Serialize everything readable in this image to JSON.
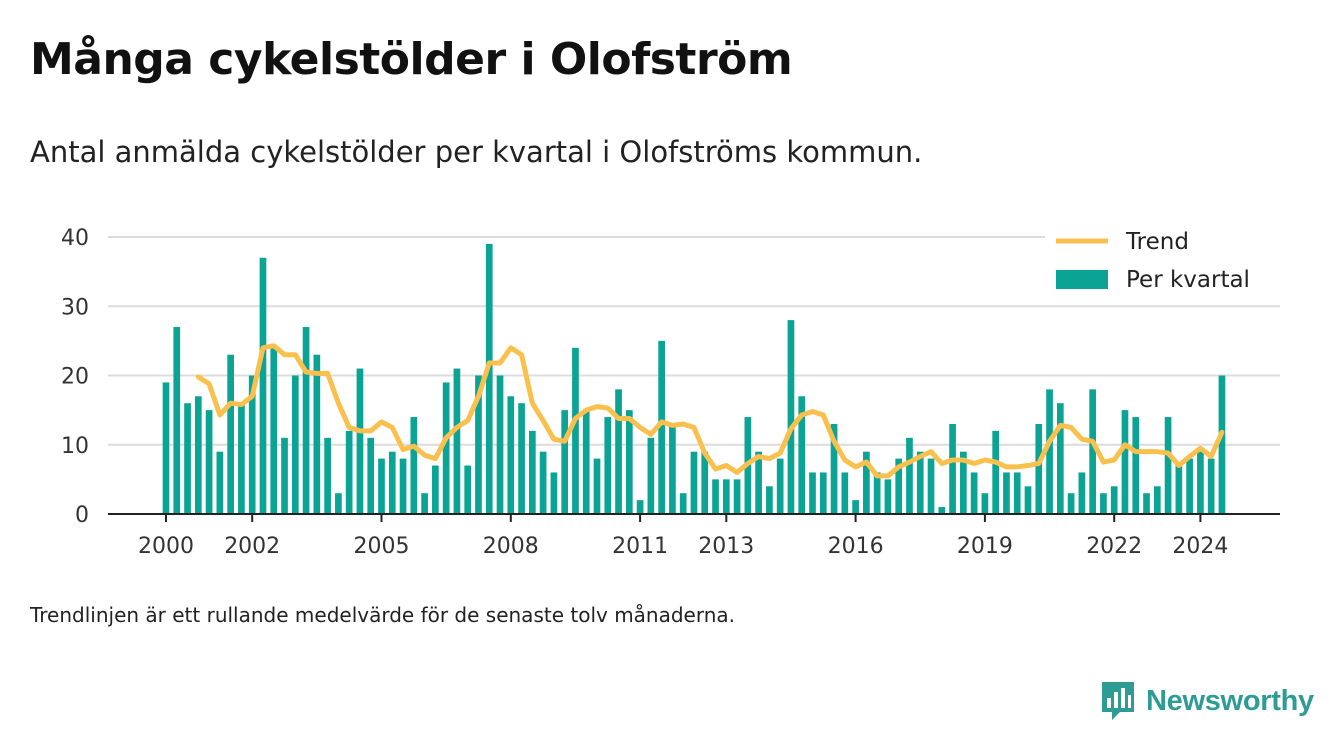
{
  "title": "Många cykelstölder i Olofström",
  "subtitle": "Antal anmälda cykelstölder per kvartal i Olofströms kommun.",
  "note": "Trendlinjen är ett rullande medelvärde för de senaste tolv månaderna.",
  "brand": "Newsworthy",
  "colors": {
    "bars": "#0aa394",
    "trend": "#f9c04d",
    "grid": "#dcdcdc",
    "axis": "#222222",
    "brand": "#2e9c95"
  },
  "chart_data": {
    "type": "bar",
    "title": "Många cykelstölder i Olofström",
    "xlabel": "",
    "ylabel": "",
    "ylim": [
      0,
      40
    ],
    "yticks": [
      0,
      10,
      20,
      30,
      40
    ],
    "xlim": [
      2000,
      2025.4
    ],
    "xticks": [
      2000,
      2002,
      2005,
      2008,
      2011,
      2013,
      2016,
      2019,
      2022,
      2024
    ],
    "grid": true,
    "legend_position": "top-right",
    "series": [
      {
        "name": "Per kvartal",
        "type": "bar",
        "color": "#0aa394",
        "start_year": 2000,
        "values": [
          19,
          27,
          16,
          17,
          15,
          9,
          23,
          16,
          20,
          37,
          24,
          11,
          20,
          27,
          23,
          11,
          3,
          12,
          21,
          11,
          8,
          9,
          8,
          14,
          3,
          7,
          19,
          21,
          7,
          20,
          39,
          20,
          17,
          16,
          12,
          9,
          6,
          15,
          24,
          15,
          8,
          14,
          18,
          15,
          2,
          11,
          25,
          13,
          3,
          9,
          9,
          5,
          5,
          5,
          14,
          9,
          4,
          8,
          28,
          17,
          6,
          6,
          13,
          6,
          2,
          9,
          6,
          5,
          8,
          11,
          9,
          8,
          1,
          13,
          9,
          6,
          3,
          12,
          6,
          6,
          4,
          13,
          18,
          16,
          3,
          6,
          18,
          3,
          4,
          15,
          14,
          3,
          4,
          14,
          7,
          8,
          9,
          8,
          20
        ]
      },
      {
        "name": "Trend",
        "type": "line",
        "color": "#f9c04d",
        "start_year": 2000.75,
        "values": [
          19.8,
          18.8,
          14.3,
          16.0,
          15.8,
          17.0,
          24.0,
          24.3,
          23.0,
          23.0,
          20.5,
          20.3,
          20.3,
          16.0,
          12.5,
          12.0,
          12.0,
          13.3,
          12.5,
          9.3,
          9.8,
          8.5,
          8.0,
          11.0,
          12.5,
          13.5,
          17.0,
          21.8,
          21.8,
          24.0,
          23.0,
          16.0,
          13.5,
          10.8,
          10.5,
          13.8,
          15.0,
          15.5,
          15.3,
          13.8,
          13.8,
          12.5,
          11.5,
          13.3,
          12.8,
          13.0,
          12.5,
          8.8,
          6.5,
          7.0,
          6.0,
          7.3,
          8.3,
          8.0,
          8.8,
          12.3,
          14.3,
          14.8,
          14.3,
          10.5,
          7.8,
          6.8,
          7.5,
          5.5,
          5.5,
          6.8,
          7.5,
          8.3,
          9.0,
          7.3,
          7.8,
          7.8,
          7.3,
          7.8,
          7.5,
          6.8,
          6.8,
          7.0,
          7.3,
          10.5,
          12.8,
          12.5,
          10.8,
          10.5,
          7.5,
          7.8,
          10.0,
          9.0,
          9.0,
          9.0,
          8.8,
          7.0,
          8.3,
          9.5,
          8.3,
          11.8
        ]
      }
    ]
  }
}
